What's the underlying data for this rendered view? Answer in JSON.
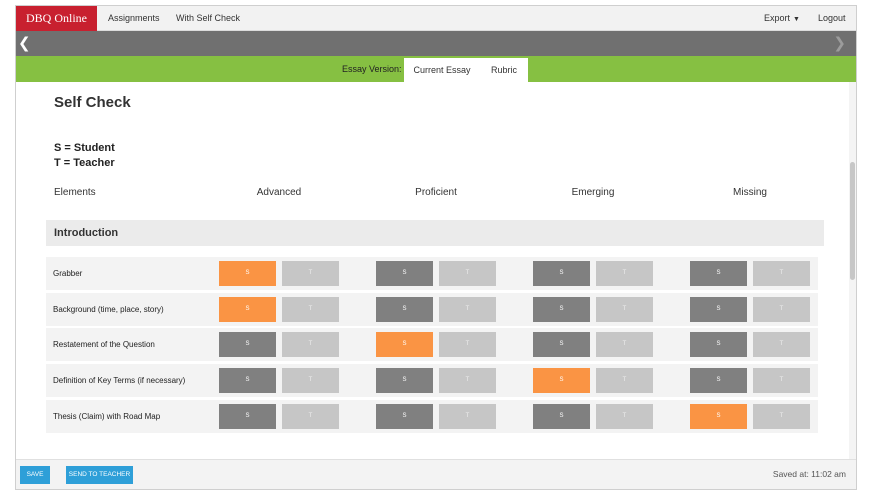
{
  "nav": {
    "brand": "DBQ Online",
    "assignments": "Assignments",
    "self_check": "With Self Check",
    "export": "Export",
    "logout": "Logout"
  },
  "version_bar": {
    "label": "Essay Version:",
    "current": "Current Essay",
    "rubric": "Rubric"
  },
  "page": {
    "title": "Self Check",
    "legend_s": "S = Student",
    "legend_t": "T = Teacher"
  },
  "columns": {
    "elements": "Elements",
    "advanced": "Advanced",
    "proficient": "Proficient",
    "emerging": "Emerging",
    "missing": "Missing"
  },
  "section": {
    "title": "Introduction"
  },
  "cell_labels": {
    "s": "S",
    "t": "T"
  },
  "rows": [
    {
      "label": "Grabber",
      "student_level": "advanced"
    },
    {
      "label": "Background (time, place, story)",
      "student_level": "advanced"
    },
    {
      "label": "Restatement of the Question",
      "student_level": "proficient"
    },
    {
      "label": "Definition of Key Terms (if necessary)",
      "student_level": "emerging"
    },
    {
      "label": "Thesis (Claim) with Road Map",
      "student_level": "missing"
    }
  ],
  "colors": {
    "brand": "#c8202f",
    "green_bar": "#86c042",
    "selected": "#fa9444",
    "button": "#2e9fd8"
  },
  "footer": {
    "save": "SAVE",
    "send": "SEND TO TEACHER",
    "saved_at": "Saved at: 11:02 am"
  }
}
